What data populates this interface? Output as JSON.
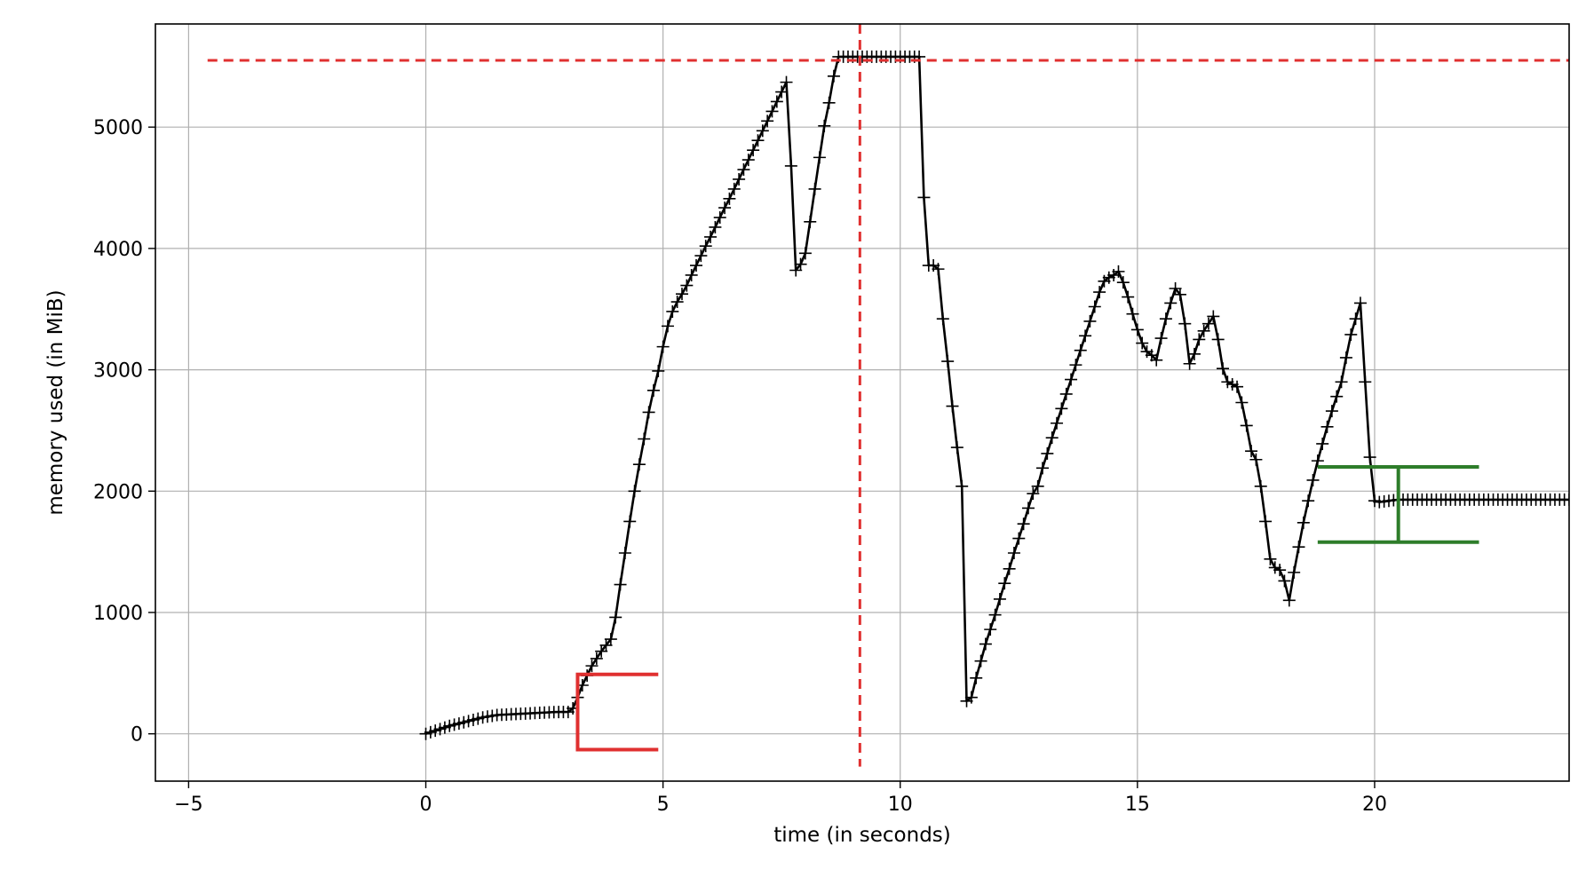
{
  "chart_data": {
    "type": "line",
    "xlabel": "time (in seconds)",
    "ylabel": "memory used (in MiB)",
    "xlim": [
      -5.7,
      24.1
    ],
    "ylim": [
      -390,
      5850
    ],
    "xticks": [
      -5,
      0,
      5,
      10,
      15,
      20
    ],
    "xtick_labels": [
      "−5",
      "0",
      "5",
      "10",
      "15",
      "20"
    ],
    "yticks": [
      0,
      1000,
      2000,
      3000,
      4000,
      5000
    ],
    "ytick_labels": [
      "0",
      "1000",
      "2000",
      "3000",
      "4000",
      "5000"
    ],
    "grid": true,
    "legend": "none",
    "colors": {
      "line": "#000000",
      "peak": "#e03030",
      "start": "#e03030",
      "end": "#2e7d2a",
      "grid": "#b0b0b0"
    },
    "series": [
      {
        "marker": "+",
        "x": [
          0.0,
          0.1,
          0.2,
          0.3,
          0.4,
          0.5,
          0.6,
          0.7,
          0.8,
          0.9,
          1.0,
          1.1,
          1.2,
          1.3,
          1.4,
          1.5,
          1.6,
          1.7,
          1.8,
          1.9,
          2.0,
          2.1,
          2.2,
          2.3,
          2.4,
          2.5,
          2.6,
          2.7,
          2.8,
          2.9,
          3.0,
          3.1,
          3.2,
          3.3,
          3.4,
          3.5,
          3.6,
          3.7,
          3.8,
          3.9,
          4.0,
          4.1,
          4.2,
          4.3,
          4.4,
          4.5,
          4.6,
          4.7,
          4.8,
          4.9,
          5.0,
          5.1,
          5.2,
          5.3,
          5.4,
          5.5,
          5.6,
          5.7,
          5.8,
          5.9,
          6.0,
          6.1,
          6.2,
          6.3,
          6.4,
          6.5,
          6.6,
          6.7,
          6.8,
          6.9,
          7.0,
          7.1,
          7.2,
          7.3,
          7.4,
          7.5,
          7.6,
          7.7,
          7.8,
          7.9,
          8.0,
          8.1,
          8.2,
          8.3,
          8.4,
          8.5,
          8.6,
          8.7,
          8.8,
          8.9,
          9.0,
          9.1,
          9.2,
          9.3,
          9.4,
          9.5,
          9.6,
          9.7,
          9.8,
          9.9,
          10.0,
          10.1,
          10.2,
          10.3,
          10.4,
          10.5,
          10.6,
          10.7,
          10.8,
          10.9,
          11.0,
          11.1,
          11.2,
          11.3,
          11.4,
          11.5,
          11.6,
          11.7,
          11.8,
          11.9,
          12.0,
          12.1,
          12.2,
          12.3,
          12.4,
          12.5,
          12.6,
          12.7,
          12.8,
          12.9,
          13.0,
          13.1,
          13.2,
          13.3,
          13.4,
          13.5,
          13.6,
          13.7,
          13.8,
          13.9,
          14.0,
          14.1,
          14.2,
          14.3,
          14.4,
          14.5,
          14.6,
          14.7,
          14.8,
          14.9,
          15.0,
          15.1,
          15.2,
          15.3,
          15.4,
          15.5,
          15.6,
          15.7,
          15.8,
          15.9,
          16.0,
          16.1,
          16.2,
          16.3,
          16.4,
          16.5,
          16.6,
          16.7,
          16.8,
          16.9,
          17.0,
          17.1,
          17.2,
          17.3,
          17.4,
          17.5,
          17.6,
          17.7,
          17.8,
          17.9,
          18.0,
          18.1,
          18.2,
          18.3,
          18.4,
          18.5,
          18.6,
          18.7,
          18.8,
          18.9,
          19.0,
          19.1,
          19.2,
          19.3,
          19.4,
          19.5,
          19.6,
          19.7,
          19.8,
          19.9,
          20.0,
          20.1,
          20.2,
          20.3,
          20.4,
          20.5,
          20.6,
          20.7,
          20.8,
          20.9,
          21.0,
          21.1,
          21.2,
          21.3,
          21.4,
          21.5,
          21.6,
          21.7,
          21.8,
          21.9,
          22.0,
          22.1,
          22.2,
          22.3,
          22.4,
          22.5,
          22.6,
          22.7,
          22.8,
          22.9,
          23.0,
          23.1,
          23.2,
          23.3,
          23.4,
          23.5,
          23.6,
          23.7,
          23.8,
          23.9,
          24.0,
          24.1
        ],
        "y": [
          0,
          13,
          26,
          39,
          52,
          65,
          75,
          85,
          95,
          105,
          115,
          125,
          135,
          142,
          148,
          155,
          157,
          159,
          161,
          163,
          165,
          167,
          169,
          171,
          173,
          175,
          177,
          179,
          180,
          180,
          180,
          210,
          300,
          400,
          480,
          560,
          620,
          680,
          730,
          780,
          960,
          1230,
          1490,
          1750,
          2000,
          2220,
          2430,
          2650,
          2830,
          2990,
          3190,
          3360,
          3480,
          3560,
          3625,
          3695,
          3780,
          3860,
          3940,
          4020,
          4095,
          4175,
          4255,
          4335,
          4410,
          4490,
          4570,
          4650,
          4730,
          4810,
          4890,
          4970,
          5050,
          5130,
          5210,
          5290,
          5370,
          4680,
          3820,
          3870,
          3960,
          4220,
          4490,
          4750,
          5010,
          5200,
          5420,
          5580,
          5580,
          5580,
          5580,
          5580,
          5580,
          5580,
          5580,
          5580,
          5580,
          5580,
          5580,
          5580,
          5580,
          5580,
          5580,
          5580,
          5580,
          4420,
          3860,
          3860,
          3830,
          3420,
          3070,
          2700,
          2360,
          2040,
          270,
          300,
          460,
          600,
          740,
          860,
          980,
          1110,
          1240,
          1360,
          1490,
          1610,
          1730,
          1860,
          1980,
          2040,
          2190,
          2310,
          2440,
          2560,
          2680,
          2800,
          2920,
          3040,
          3160,
          3280,
          3400,
          3520,
          3640,
          3730,
          3760,
          3780,
          3810,
          3720,
          3600,
          3460,
          3330,
          3220,
          3150,
          3120,
          3080,
          3260,
          3420,
          3550,
          3670,
          3620,
          3380,
          3050,
          3130,
          3250,
          3320,
          3380,
          3440,
          3250,
          3010,
          2900,
          2880,
          2860,
          2730,
          2540,
          2330,
          2260,
          2040,
          1750,
          1440,
          1370,
          1350,
          1260,
          1100,
          1330,
          1540,
          1740,
          1920,
          2090,
          2250,
          2390,
          2530,
          2660,
          2780,
          2900,
          3100,
          3290,
          3420,
          3550,
          2900,
          2280,
          1920,
          1910,
          1915,
          1920,
          1925,
          1930,
          1930,
          1930,
          1930,
          1930,
          1930,
          1930,
          1930,
          1930,
          1930,
          1930,
          1930,
          1930,
          1930,
          1930,
          1930,
          1930,
          1930,
          1930,
          1930,
          1930,
          1930,
          1930,
          1930,
          1930,
          1930,
          1930,
          1930,
          1930,
          1930,
          1930,
          1930,
          1930,
          1930,
          1930,
          1930,
          1930
        ]
      }
    ],
    "annotations": {
      "peak_hline": {
        "y": 5550,
        "x_from": -4.6
      },
      "peak_vline": {
        "x": 9.15,
        "y_from": -270
      },
      "start_bracket": {
        "x": 3.2,
        "x_right": 4.9,
        "y_top": 490,
        "y_bottom": -130
      },
      "end_bracket": {
        "x": 20.5,
        "x_left": 18.8,
        "x_right": 22.2,
        "y_top": 2200,
        "y_bottom": 1580
      }
    }
  }
}
